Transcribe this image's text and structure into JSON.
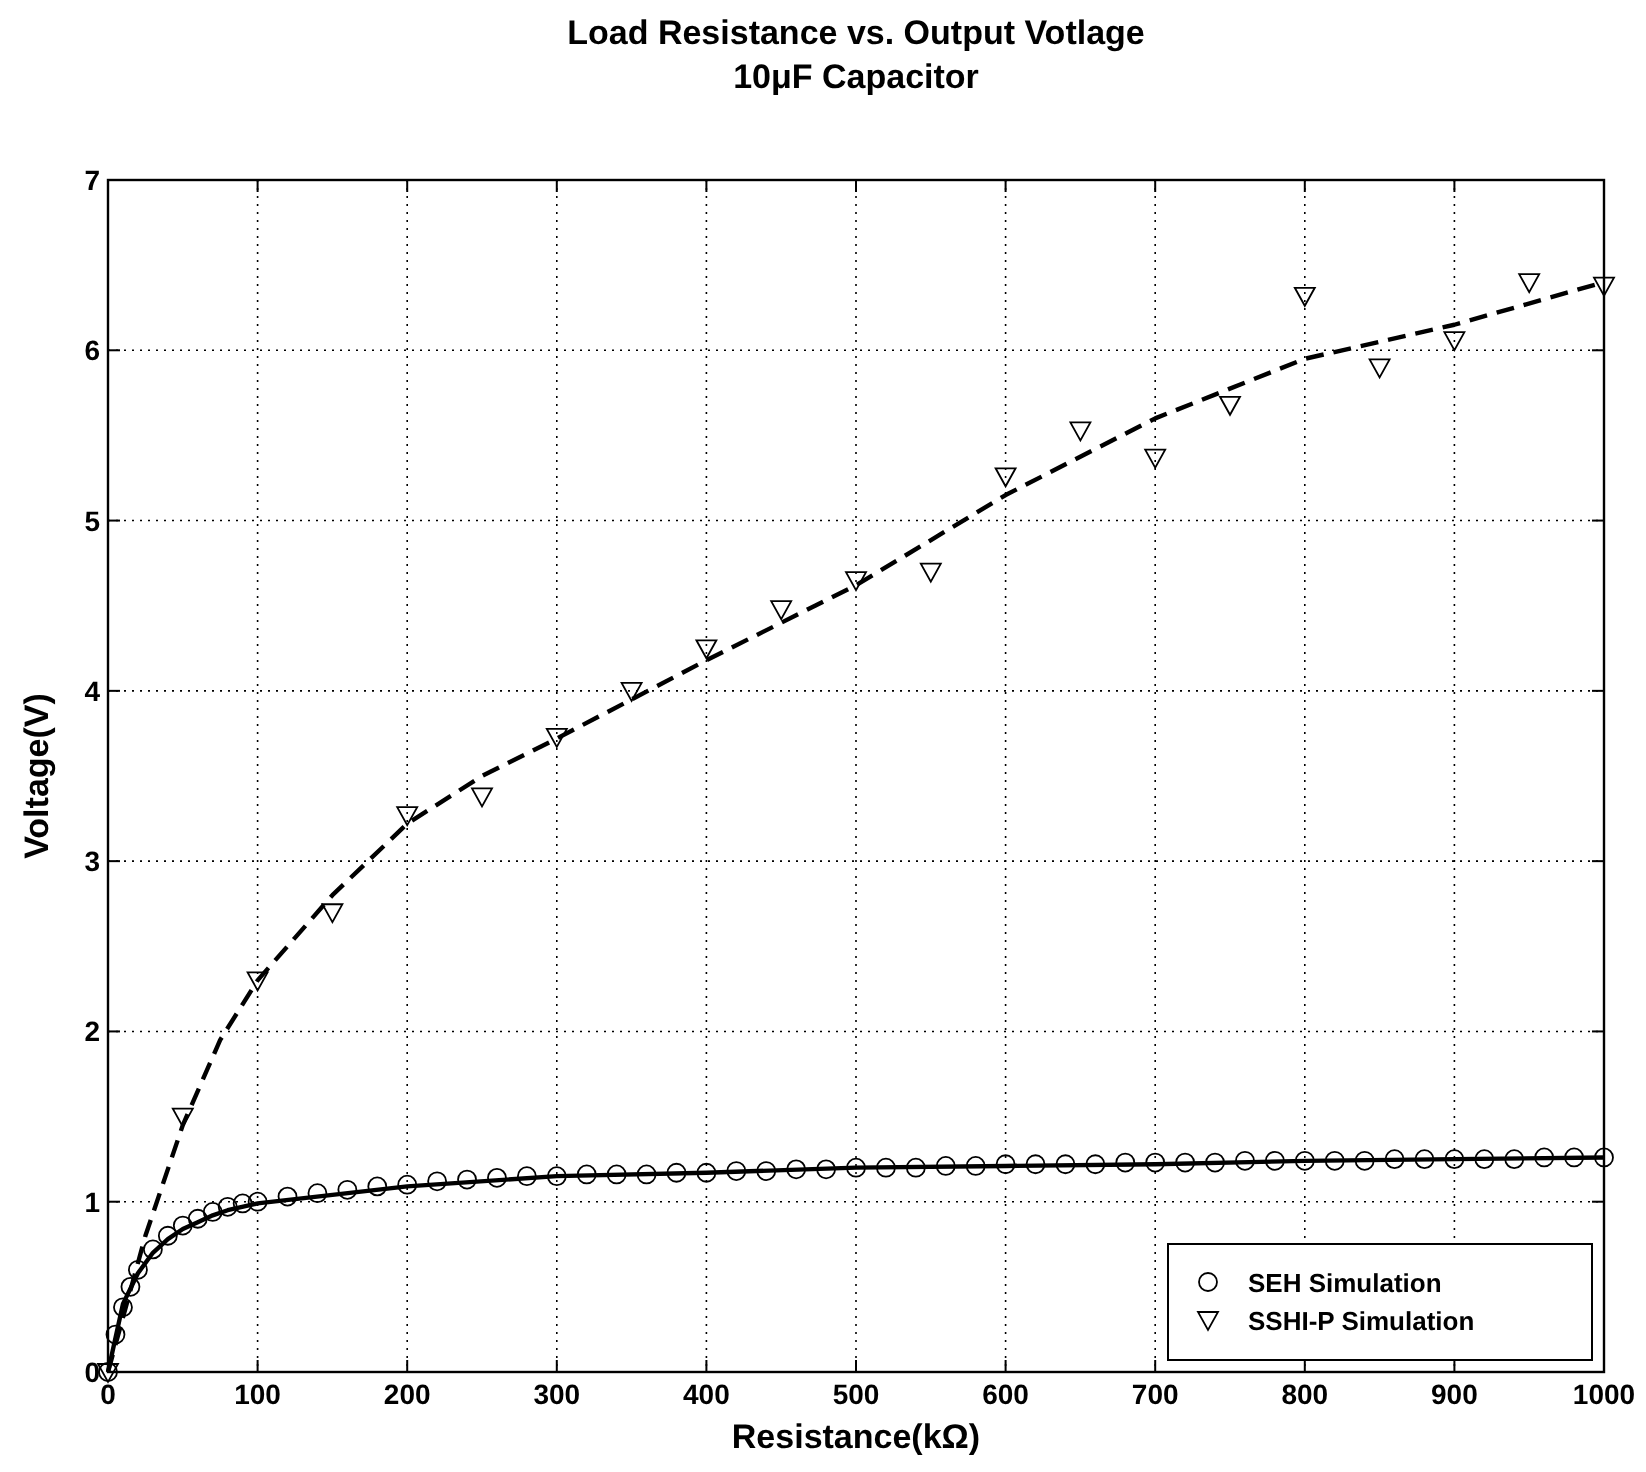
{
  "chart_data": {
    "type": "scatter",
    "title": "Load Resistance vs. Output Votlage",
    "subtitle": "10μF Capacitor",
    "xlabel": "Resistance(kΩ)",
    "ylabel": "Voltage(V)",
    "xlim": [
      0,
      1000
    ],
    "xticks": [
      0,
      100,
      200,
      300,
      400,
      500,
      600,
      700,
      800,
      900,
      1000
    ],
    "ylim": [
      0,
      7
    ],
    "yticks": [
      0,
      1,
      2,
      3,
      4,
      5,
      6,
      7
    ],
    "grid": true,
    "legend": "bottom right",
    "series": [
      {
        "name": "SEH Simulation",
        "marker": "circle",
        "color": "#000000",
        "x": [
          0,
          5,
          10,
          15,
          20,
          30,
          40,
          50,
          60,
          70,
          80,
          90,
          100,
          120,
          140,
          160,
          180,
          200,
          220,
          240,
          260,
          280,
          300,
          320,
          340,
          360,
          380,
          400,
          420,
          440,
          460,
          480,
          500,
          520,
          540,
          560,
          580,
          600,
          620,
          640,
          660,
          680,
          700,
          720,
          740,
          760,
          780,
          800,
          820,
          840,
          860,
          880,
          900,
          920,
          940,
          960,
          980,
          1000
        ],
        "values": [
          0,
          0.22,
          0.38,
          0.5,
          0.6,
          0.72,
          0.8,
          0.86,
          0.9,
          0.94,
          0.97,
          0.99,
          1.0,
          1.03,
          1.05,
          1.07,
          1.09,
          1.1,
          1.12,
          1.13,
          1.14,
          1.15,
          1.15,
          1.16,
          1.16,
          1.16,
          1.17,
          1.17,
          1.18,
          1.18,
          1.19,
          1.19,
          1.2,
          1.2,
          1.2,
          1.21,
          1.21,
          1.22,
          1.22,
          1.22,
          1.22,
          1.23,
          1.23,
          1.23,
          1.23,
          1.24,
          1.24,
          1.24,
          1.24,
          1.24,
          1.25,
          1.25,
          1.25,
          1.25,
          1.25,
          1.26,
          1.26,
          1.26
        ]
      },
      {
        "name": "SSHI-P Simulation",
        "marker": "triangle",
        "color": "#000000",
        "x": [
          0,
          50,
          100,
          150,
          200,
          250,
          300,
          350,
          400,
          450,
          500,
          550,
          600,
          650,
          700,
          750,
          800,
          850,
          900,
          950,
          1000
        ],
        "values": [
          0,
          1.5,
          2.3,
          2.7,
          3.27,
          3.38,
          3.73,
          4.0,
          4.25,
          4.48,
          4.65,
          4.7,
          5.26,
          5.53,
          5.37,
          5.68,
          6.32,
          5.9,
          6.06,
          6.4,
          6.38
        ]
      },
      {
        "type": "line",
        "line_style": "solid",
        "color": "#000000",
        "x": [
          0,
          10,
          20,
          30,
          40,
          50,
          60,
          70,
          80,
          100,
          150,
          200,
          300,
          400,
          500,
          600,
          700,
          800,
          900,
          1000
        ],
        "values": [
          0,
          0.4,
          0.58,
          0.7,
          0.78,
          0.84,
          0.88,
          0.92,
          0.95,
          0.99,
          1.04,
          1.09,
          1.15,
          1.17,
          1.2,
          1.21,
          1.22,
          1.24,
          1.25,
          1.26
        ]
      },
      {
        "type": "line",
        "line_style": "dashed",
        "color": "#000000",
        "x": [
          0,
          25,
          50,
          75,
          100,
          150,
          200,
          250,
          300,
          400,
          500,
          600,
          700,
          800,
          900,
          1000
        ],
        "values": [
          0,
          0.8,
          1.45,
          1.95,
          2.3,
          2.8,
          3.22,
          3.5,
          3.72,
          4.18,
          4.62,
          5.15,
          5.6,
          5.95,
          6.15,
          6.4
        ]
      }
    ]
  }
}
